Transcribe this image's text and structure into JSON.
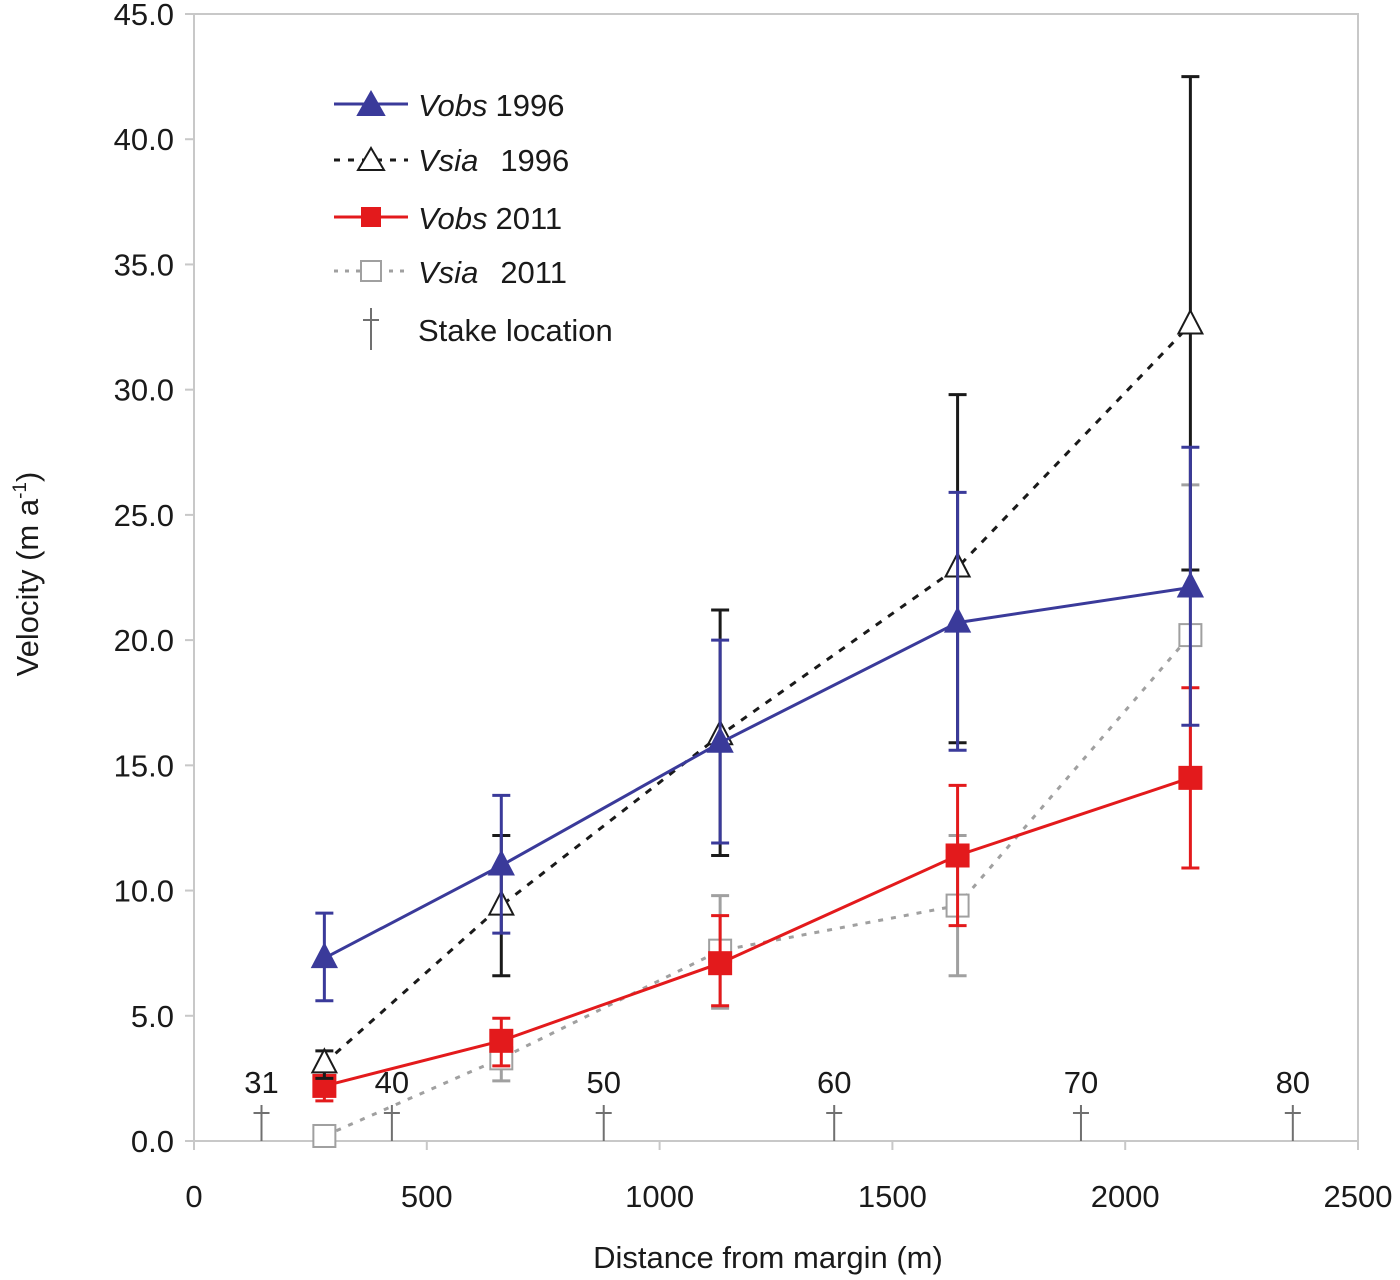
{
  "chart_data": {
    "type": "line",
    "title": "",
    "xlabel": "Distance from margin (m)",
    "ylabel": "Velocity (m a",
    "ylabel_sup": "-1",
    "ylabel_close": ")",
    "xlim": [
      0,
      2500
    ],
    "ylim": [
      0,
      45
    ],
    "x_ticks": [
      "0",
      "500",
      "1000",
      "1500",
      "2000",
      "2500"
    ],
    "y_ticks": [
      "0.0",
      "5.0",
      "10.0",
      "15.0",
      "20.0",
      "25.0",
      "30.0",
      "35.0",
      "40.0",
      "45.0"
    ],
    "grid": false,
    "legend_position": "top-left",
    "series": [
      {
        "name": "Vobs",
        "year": "1996",
        "color": "#3a3a9a",
        "line": "solid",
        "marker": "triangle-filled",
        "x": [
          280,
          660,
          1130,
          1640,
          2140
        ],
        "values": [
          7.3,
          11.0,
          15.9,
          20.7,
          22.1
        ],
        "err_low": [
          5.6,
          8.3,
          11.9,
          15.6,
          16.6
        ],
        "err_high": [
          9.1,
          13.8,
          20.0,
          25.9,
          27.7
        ]
      },
      {
        "name": "Vsia",
        "year": "1996",
        "color": "#1a1a1a",
        "line": "dashed",
        "marker": "triangle-open",
        "x": [
          280,
          660,
          1130,
          1640,
          2140
        ],
        "values": [
          3.1,
          9.4,
          16.2,
          22.9,
          32.6
        ],
        "err_low": [
          2.5,
          6.6,
          11.4,
          15.9,
          22.8
        ],
        "err_high": [
          3.6,
          12.2,
          21.2,
          29.8,
          42.5
        ]
      },
      {
        "name": "Vobs",
        "year": "2011",
        "color": "#e31a1c",
        "line": "solid",
        "marker": "square-filled",
        "x": [
          280,
          660,
          1130,
          1640,
          2140
        ],
        "values": [
          2.2,
          4.0,
          7.1,
          11.4,
          14.5
        ],
        "err_low": [
          1.6,
          3.0,
          5.4,
          8.6,
          10.9
        ],
        "err_high": [
          2.8,
          4.9,
          9.0,
          14.2,
          18.1
        ]
      },
      {
        "name": "Vsia",
        "year": "2011",
        "color": "#a0a0a0",
        "line": "dotted",
        "marker": "square-open",
        "x": [
          280,
          660,
          1130,
          1640,
          2140
        ],
        "values": [
          0.2,
          3.3,
          7.6,
          9.4,
          20.2
        ],
        "err_low": [
          0.1,
          2.4,
          5.3,
          6.6,
          14.2
        ],
        "err_high": [
          0.3,
          4.2,
          9.8,
          12.2,
          26.2
        ]
      }
    ],
    "stakes": {
      "legend_label": "Stake location",
      "color": "#707070",
      "x": [
        145,
        425,
        880,
        1375,
        1905,
        2360
      ],
      "labels": [
        "31",
        "40",
        "50",
        "60",
        "70",
        "80"
      ]
    }
  }
}
